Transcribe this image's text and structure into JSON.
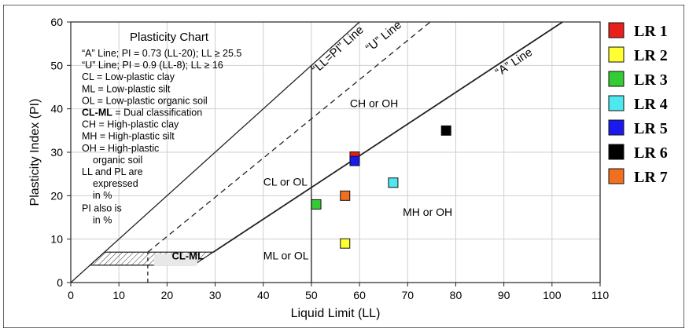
{
  "chart_data": {
    "type": "scatter",
    "title": "Plasticity Chart",
    "xlabel": "Liquid Limit (LL)",
    "ylabel": "Plasticity Index (PI)",
    "xlim": [
      0,
      110
    ],
    "ylim": [
      0,
      60
    ],
    "x_ticks": [
      "0",
      "10",
      "20",
      "30",
      "40",
      "50",
      "60",
      "70",
      "80",
      "90",
      "100",
      "110"
    ],
    "y_ticks": [
      "0",
      "10",
      "20",
      "30",
      "40",
      "50",
      "60"
    ],
    "grid": true,
    "legend_position": "right",
    "series": [
      {
        "name": "LR 1",
        "color": "#e8201c",
        "x": 59,
        "y": 29
      },
      {
        "name": "LR 2",
        "color": "#ffff33",
        "x": 57,
        "y": 9
      },
      {
        "name": "LR 3",
        "color": "#33cc33",
        "x": 51,
        "y": 18
      },
      {
        "name": "LR 4",
        "color": "#4de8f0",
        "x": 67,
        "y": 23
      },
      {
        "name": "LR 5",
        "color": "#1a1aee",
        "x": 59,
        "y": 28
      },
      {
        "name": "LR 6",
        "color": "#000000",
        "x": 78,
        "y": 35
      },
      {
        "name": "LR 7",
        "color": "#f07020",
        "x": 57,
        "y": 20
      }
    ],
    "reference_lines": [
      {
        "label": "“LL=PI” Line",
        "from": [
          0,
          0
        ],
        "to": [
          60,
          60
        ],
        "style": "solid"
      },
      {
        "label": "“U” Line",
        "from": [
          16,
          7
        ],
        "to": [
          74.7,
          60
        ],
        "style": "dashed"
      },
      {
        "label": "“A” Line",
        "from": [
          29.6,
          7
        ],
        "to": [
          102.2,
          60
        ],
        "style": "solid"
      },
      {
        "label": "",
        "from": [
          50,
          0
        ],
        "to": [
          50,
          50
        ],
        "style": "solid"
      }
    ],
    "zones": [
      {
        "label": "CH or OH",
        "x": 58,
        "y": 40
      },
      {
        "label": "CL or OL",
        "x": 40,
        "y": 22
      },
      {
        "label": "MH or OH",
        "x": 69,
        "y": 15
      },
      {
        "label": "ML or OL",
        "x": 40,
        "y": 5
      },
      {
        "label": "CL-ML",
        "x": 21,
        "y": 5
      }
    ],
    "notes": [
      "“A” Line; PI = 0.73 (LL-20); LL ≥ 25.5",
      "“U” Line; PI = 0.9 (LL-8); LL ≥ 16",
      "CL = Low-plastic clay",
      "ML = Low-plastic silt",
      "OL = Low-plastic organic soil",
      "CL-ML|= Dual classification",
      "CH = High-plastic clay",
      "MH = High-plastic silt",
      "OH = High-plastic",
      "organic soil",
      "LL and PL are",
      "expressed",
      "in %",
      "PI also is",
      "in %"
    ]
  }
}
